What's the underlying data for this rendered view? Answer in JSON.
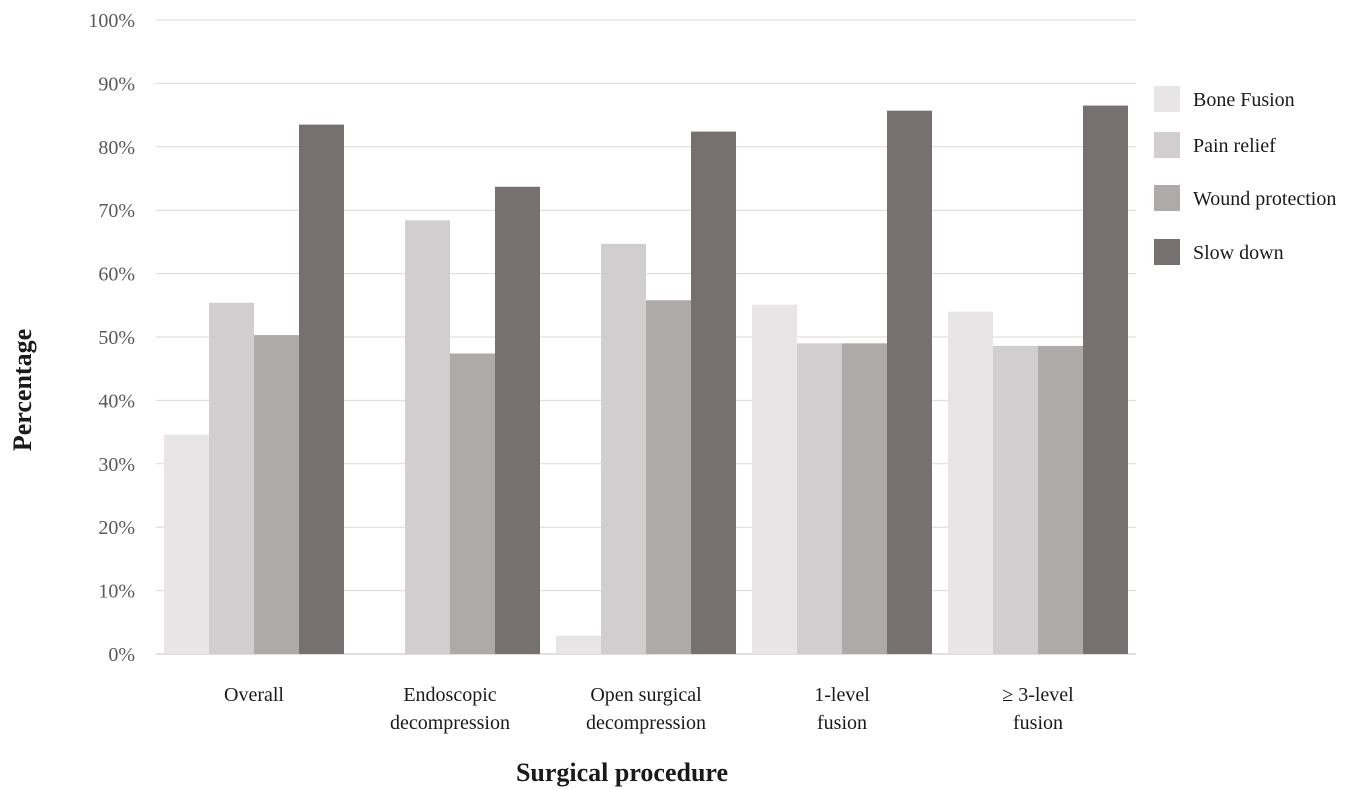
{
  "chart_data": {
    "type": "bar",
    "title": "",
    "xlabel": "Surgical procedure",
    "ylabel": "Percentage",
    "ylim": [
      0,
      100
    ],
    "y_ticks": [
      "0%",
      "10%",
      "20%",
      "30%",
      "40%",
      "50%",
      "60%",
      "70%",
      "80%",
      "90%",
      "100%"
    ],
    "grid": true,
    "legend_position": "right",
    "categories": [
      [
        "Overall"
      ],
      [
        "Endoscopic",
        "decompression"
      ],
      [
        "Open surgical",
        "decompression"
      ],
      [
        "1-level",
        "fusion"
      ],
      [
        "≥ 3-level",
        "fusion"
      ]
    ],
    "series": [
      {
        "name": "Bone Fusion",
        "color": "#e7e5e6",
        "values": [
          34.6,
          0,
          2.9,
          55.1,
          54.0
        ]
      },
      {
        "name": "Pain relief",
        "color": "#d0cecf",
        "values": [
          55.4,
          68.4,
          64.7,
          49.0,
          48.6
        ]
      },
      {
        "name": "Wound protection",
        "color": "#aeaaa9",
        "values": [
          50.3,
          47.4,
          55.8,
          49.0,
          48.6
        ]
      },
      {
        "name": "Slow down",
        "color": "#767170",
        "values": [
          83.5,
          73.7,
          82.4,
          85.7,
          86.5
        ]
      }
    ]
  }
}
